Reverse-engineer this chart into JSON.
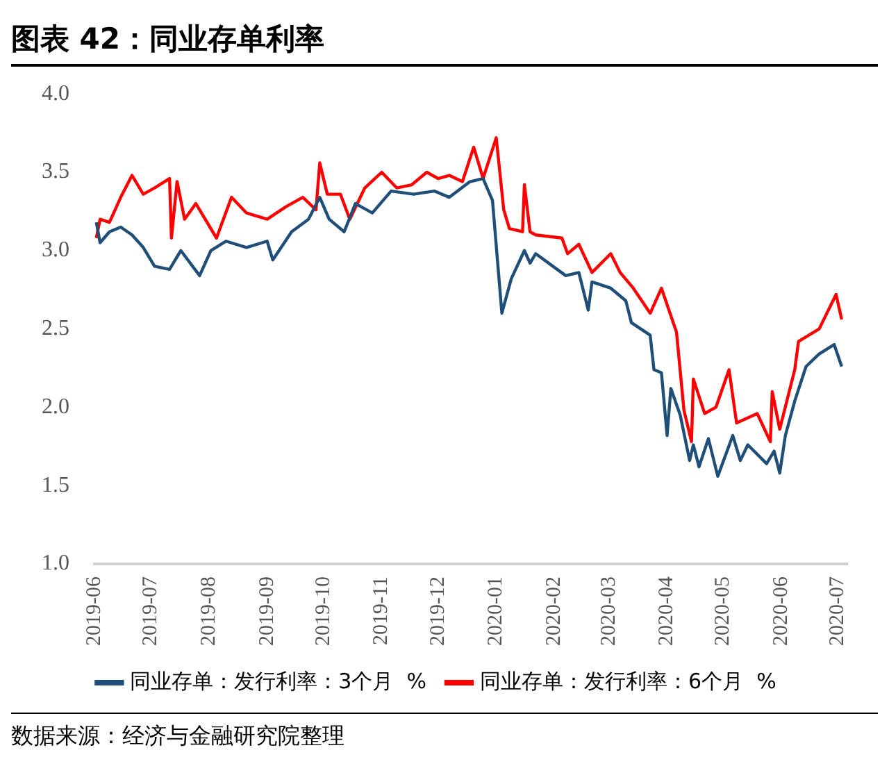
{
  "chart_data": {
    "type": "line",
    "title": "图表 42：同业存单利率",
    "xlim": [
      "2019-06-01",
      "2020-07-06"
    ],
    "xticks": [
      "2019-06",
      "2019-07",
      "2019-08",
      "2019-09",
      "2019-10",
      "2019-11",
      "2019-12",
      "2020-01",
      "2020-02",
      "2020-03",
      "2020-04",
      "2020-05",
      "2020-06",
      "2020-07"
    ],
    "ylim": [
      1,
      4
    ],
    "yticks": [
      {
        "value": 1,
        "label": "1.0"
      },
      {
        "value": 1.5,
        "label": "1.5"
      },
      {
        "value": 2,
        "label": "2.0"
      },
      {
        "value": 2.5,
        "label": "2.5"
      },
      {
        "value": 3,
        "label": "3.0"
      },
      {
        "value": 3.5,
        "label": "3.5"
      },
      {
        "value": 4,
        "label": "4.0"
      }
    ],
    "grid": false,
    "legend": "bottom",
    "marker": "none",
    "line_style": "solid",
    "annotations": [
      "数据来源：经济与金融研究院整理"
    ],
    "series": [
      {
        "name": "同业存单：发行利率：3个月  %",
        "color": "#1f4e79",
        "x": [
          "2019-06-02",
          "2019-06-04",
          "2019-06-09",
          "2019-06-15",
          "2019-06-21",
          "2019-06-27",
          "2019-07-03",
          "2019-07-11",
          "2019-07-17",
          "2019-07-27",
          "2019-08-02",
          "2019-08-10",
          "2019-08-21",
          "2019-09-01",
          "2019-09-04",
          "2019-09-14",
          "2019-09-23",
          "2019-09-29",
          "2019-10-04",
          "2019-10-12",
          "2019-10-18",
          "2019-10-27",
          "2019-11-06",
          "2019-11-18",
          "2019-11-29",
          "2019-12-07",
          "2019-12-18",
          "2019-12-25",
          "2019-12-30",
          "2020-01-04",
          "2020-01-09",
          "2020-01-16",
          "2020-01-19",
          "2020-01-22",
          "2020-02-07",
          "2020-02-14",
          "2020-02-19",
          "2020-02-21",
          "2020-03-02",
          "2020-03-10",
          "2020-03-13",
          "2020-03-23",
          "2020-03-25",
          "2020-03-29",
          "2020-04-01",
          "2020-04-03",
          "2020-04-08",
          "2020-04-13",
          "2020-04-15",
          "2020-04-18",
          "2020-04-23",
          "2020-04-28",
          "2020-05-06",
          "2020-05-10",
          "2020-05-14",
          "2020-05-24",
          "2020-05-28",
          "2020-05-31",
          "2020-06-03",
          "2020-06-08",
          "2020-06-14",
          "2020-06-21",
          "2020-06-29",
          "2020-07-03"
        ],
        "values": [
          3.18,
          3.05,
          3.12,
          3.15,
          3.1,
          3.02,
          2.9,
          2.88,
          3.0,
          2.84,
          3.0,
          3.06,
          3.02,
          3.06,
          2.94,
          3.12,
          3.2,
          3.34,
          3.2,
          3.12,
          3.3,
          3.24,
          3.38,
          3.36,
          3.38,
          3.34,
          3.44,
          3.46,
          3.32,
          2.6,
          2.82,
          3.0,
          2.92,
          2.98,
          2.84,
          2.86,
          2.62,
          2.8,
          2.76,
          2.68,
          2.54,
          2.46,
          2.24,
          2.22,
          1.82,
          2.12,
          1.95,
          1.66,
          1.76,
          1.62,
          1.8,
          1.56,
          1.82,
          1.66,
          1.76,
          1.64,
          1.72,
          1.58,
          1.82,
          2.04,
          2.26,
          2.34,
          2.4,
          2.26
        ]
      },
      {
        "name": "同业存单：发行利率：6个月  %",
        "color": "#ff0000",
        "x": [
          "2019-06-02",
          "2019-06-04",
          "2019-06-09",
          "2019-06-15",
          "2019-06-21",
          "2019-06-27",
          "2019-07-03",
          "2019-07-11",
          "2019-07-12",
          "2019-07-15",
          "2019-07-19",
          "2019-07-25",
          "2019-08-05",
          "2019-08-13",
          "2019-08-21",
          "2019-09-01",
          "2019-09-11",
          "2019-09-20",
          "2019-09-27",
          "2019-09-29",
          "2019-10-03",
          "2019-10-10",
          "2019-10-15",
          "2019-10-23",
          "2019-11-01",
          "2019-11-09",
          "2019-11-17",
          "2019-11-25",
          "2019-12-01",
          "2019-12-07",
          "2019-12-14",
          "2019-12-20",
          "2019-12-25",
          "2020-01-01",
          "2020-01-05",
          "2020-01-08",
          "2020-01-15",
          "2020-01-16",
          "2020-01-19",
          "2020-01-22",
          "2020-02-05",
          "2020-02-08",
          "2020-02-14",
          "2020-02-21",
          "2020-03-02",
          "2020-03-07",
          "2020-03-14",
          "2020-03-23",
          "2020-03-29",
          "2020-04-06",
          "2020-04-10",
          "2020-04-14",
          "2020-04-15",
          "2020-04-21",
          "2020-04-27",
          "2020-05-04",
          "2020-05-08",
          "2020-05-19",
          "2020-05-26",
          "2020-05-27",
          "2020-05-31",
          "2020-06-08",
          "2020-06-10",
          "2020-06-21",
          "2020-06-30",
          "2020-07-03"
        ],
        "values": [
          3.08,
          3.2,
          3.18,
          3.34,
          3.48,
          3.36,
          3.4,
          3.46,
          3.08,
          3.44,
          3.2,
          3.3,
          3.08,
          3.34,
          3.24,
          3.2,
          3.28,
          3.34,
          3.26,
          3.56,
          3.36,
          3.36,
          3.2,
          3.4,
          3.5,
          3.4,
          3.42,
          3.5,
          3.46,
          3.48,
          3.44,
          3.66,
          3.46,
          3.72,
          3.26,
          3.14,
          3.12,
          3.42,
          3.12,
          3.1,
          3.08,
          2.98,
          3.04,
          2.86,
          2.98,
          2.86,
          2.76,
          2.6,
          2.76,
          2.48,
          1.98,
          1.78,
          2.18,
          1.96,
          2.0,
          2.24,
          1.9,
          1.96,
          1.78,
          2.1,
          1.86,
          2.24,
          2.42,
          2.5,
          2.72,
          2.56
        ]
      }
    ]
  }
}
